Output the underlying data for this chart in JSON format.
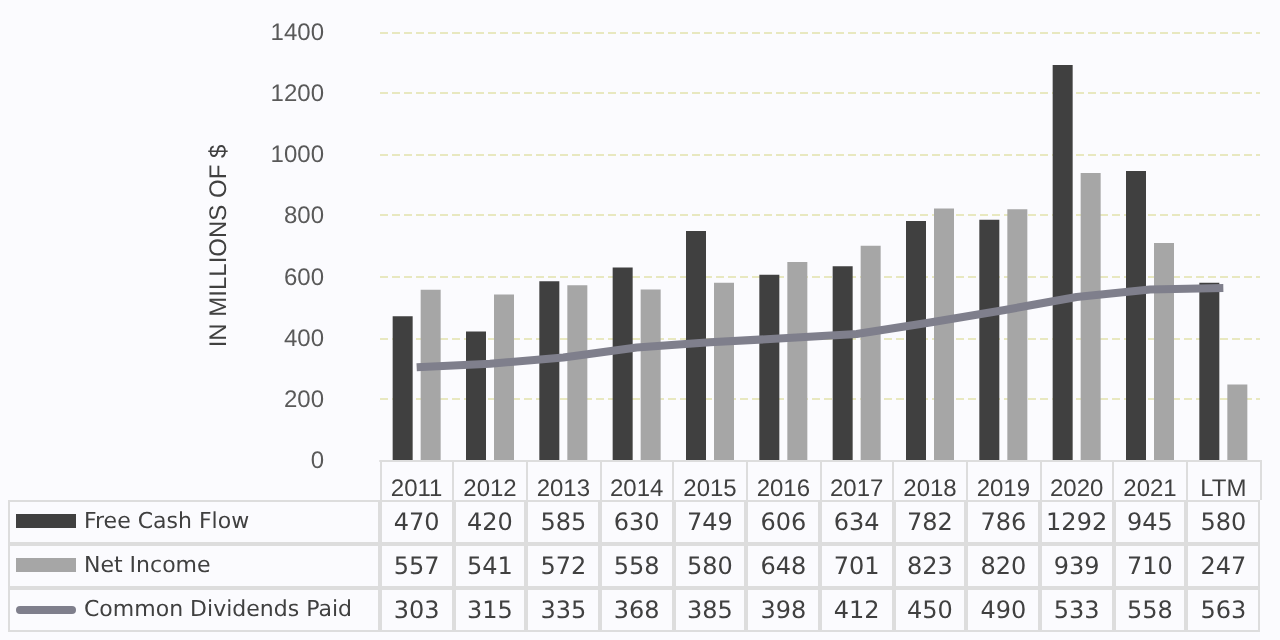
{
  "chart_data": {
    "type": "bar",
    "ylabel": "IN MILLIONS OF $",
    "categories": [
      "2011",
      "2012",
      "2013",
      "2014",
      "2015",
      "2016",
      "2017",
      "2018",
      "2019",
      "2020",
      "2021",
      "LTM"
    ],
    "series": [
      {
        "name": "Free Cash Flow",
        "color": "#404040",
        "values": [
          470,
          420,
          585,
          630,
          749,
          606,
          634,
          782,
          786,
          1292,
          945,
          580
        ]
      },
      {
        "name": "Net Income",
        "color": "#a6a6a6",
        "values": [
          557,
          541,
          572,
          558,
          580,
          648,
          701,
          823,
          820,
          939,
          710,
          247
        ]
      },
      {
        "name": "Common Dividends Paid",
        "type": "line",
        "color": "#7f7f8c",
        "marker": "none",
        "values": [
          303,
          315,
          335,
          368,
          385,
          398,
          412,
          450,
          490,
          533,
          558,
          563
        ]
      }
    ],
    "ylim": [
      0,
      1400
    ],
    "yticks": [
      0,
      200,
      400,
      600,
      800,
      1000,
      1200,
      1400
    ],
    "grid": "y",
    "legend": "bottom",
    "data_labels": true
  }
}
